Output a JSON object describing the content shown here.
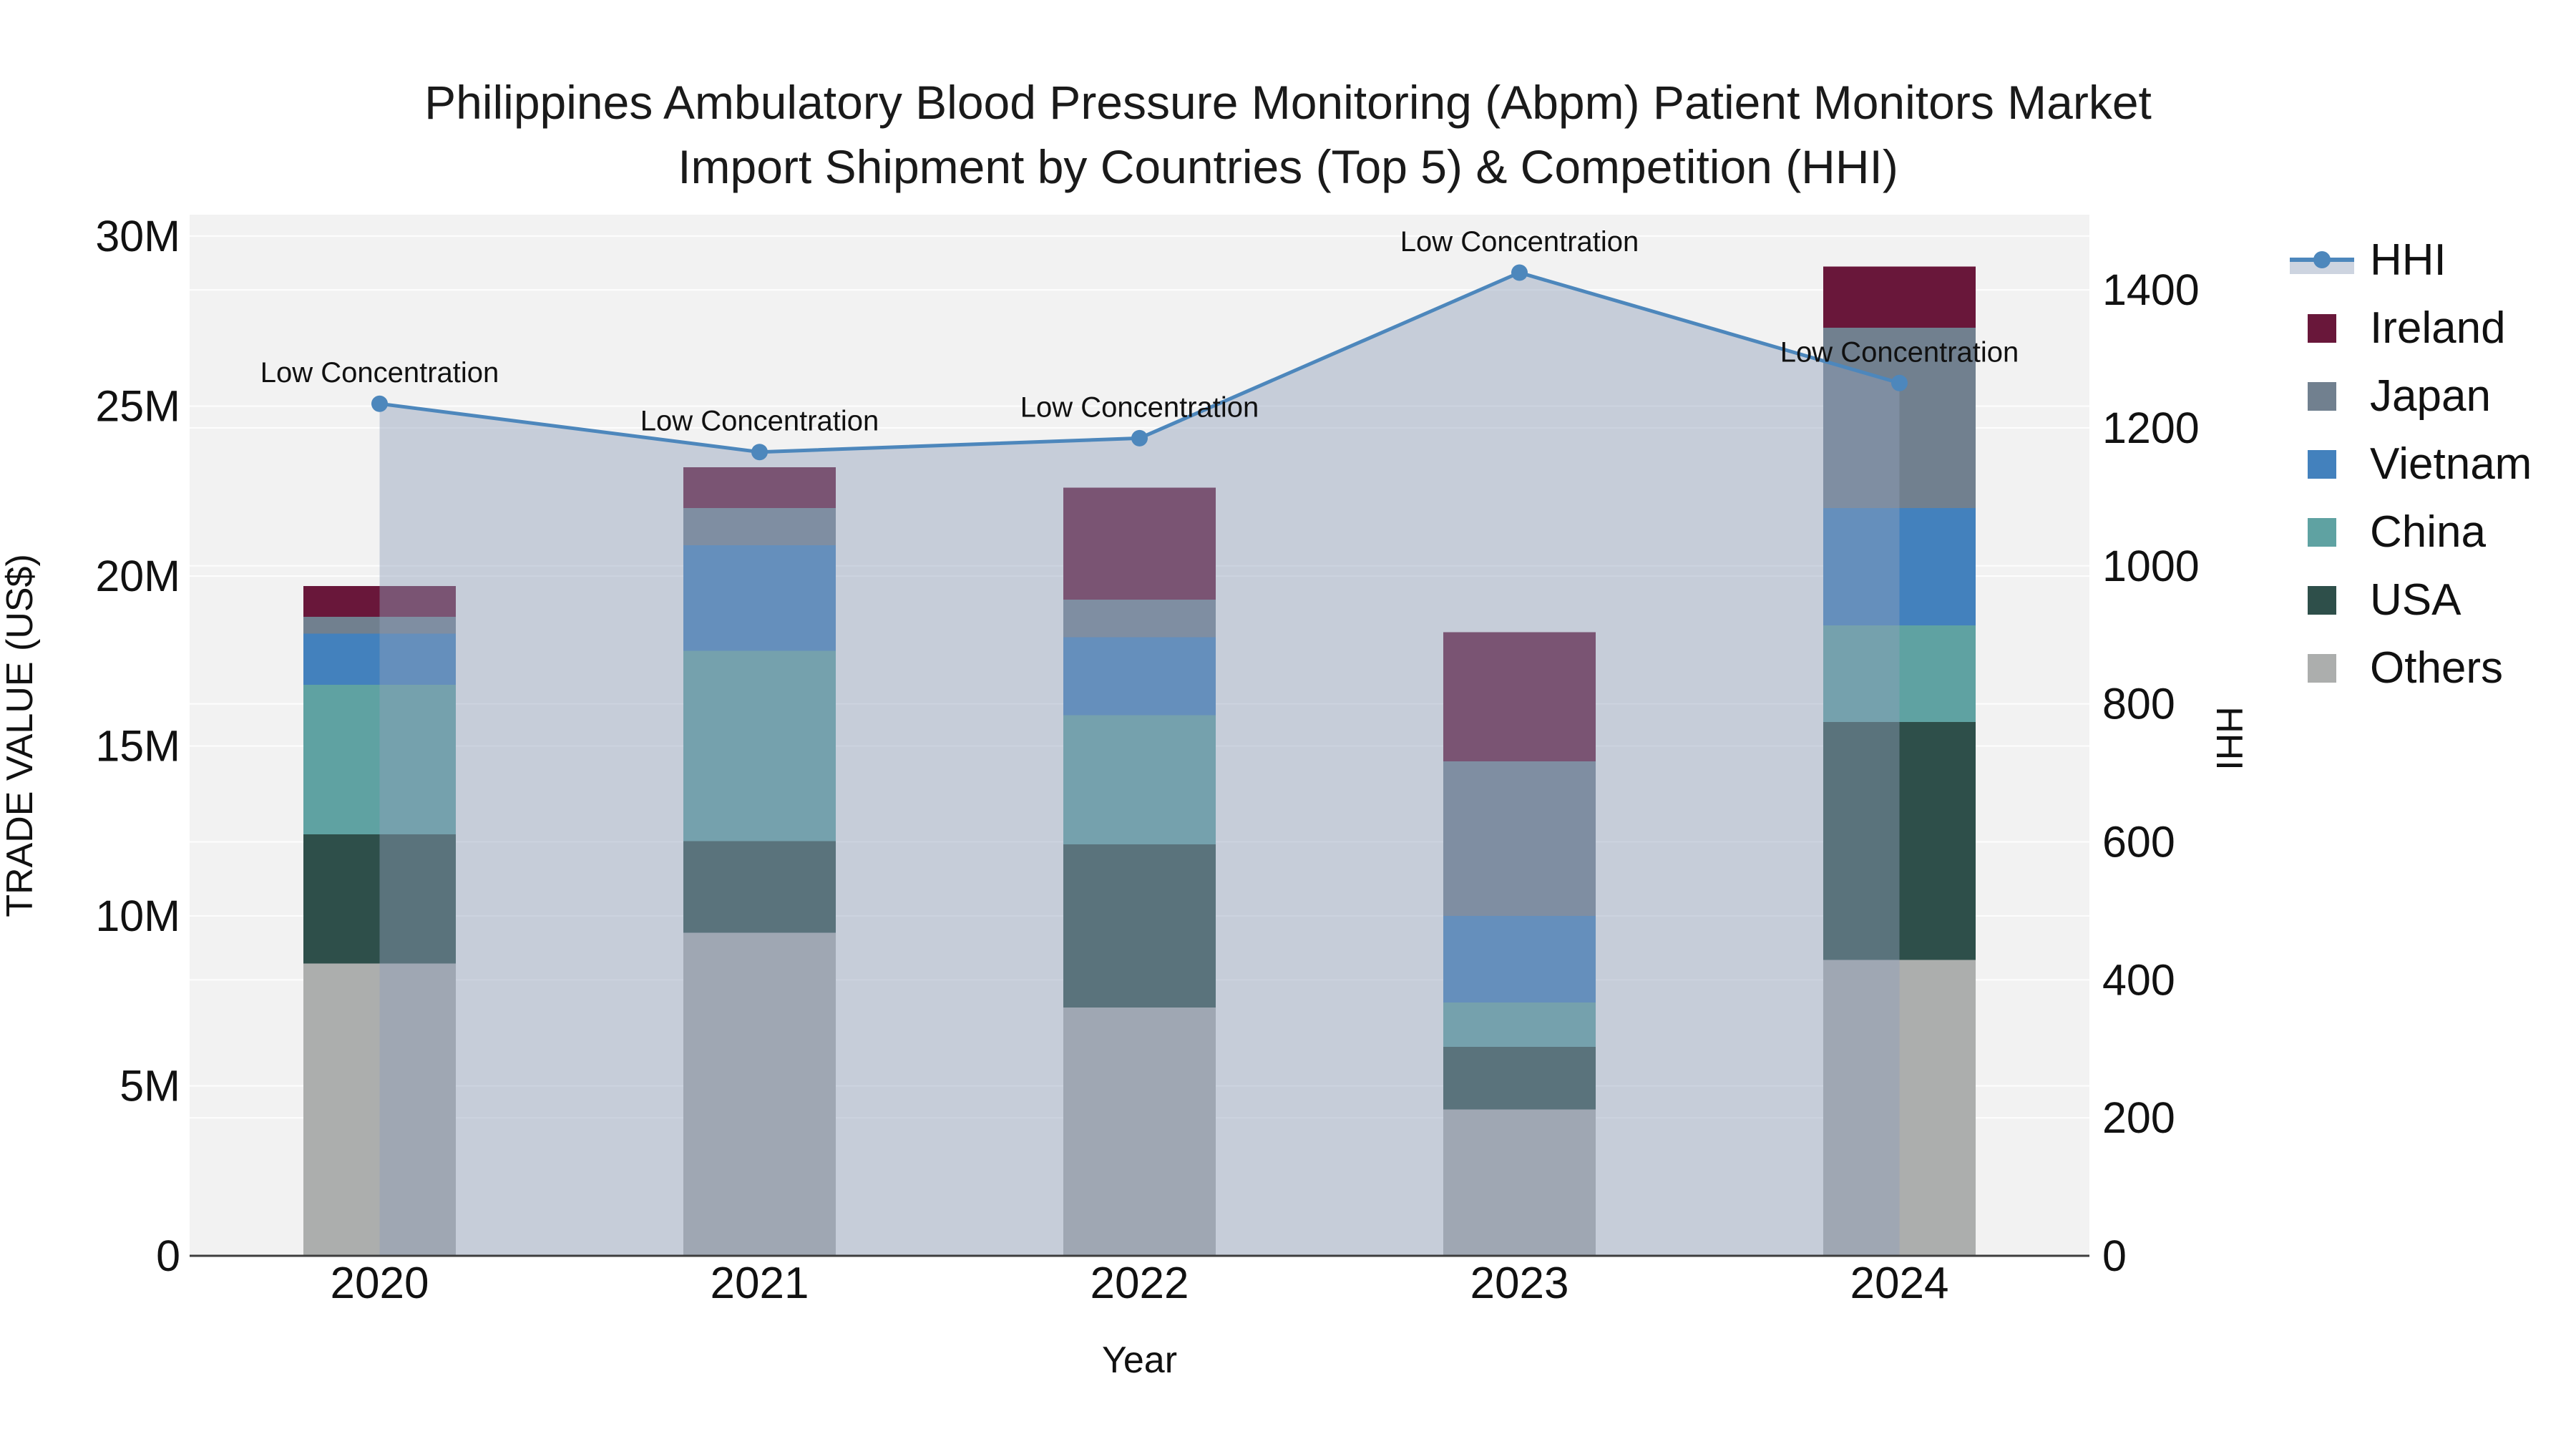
{
  "title": {
    "line1": "Philippines Ambulatory Blood Pressure Monitoring (Abpm) Patient Monitors Market",
    "line2": "Import Shipment by Countries (Top 5) & Competition (HHI)"
  },
  "chart_data": {
    "type": "combo: stacked bar (trade value) + line with area fill (HHI)",
    "categories": [
      "2020",
      "2021",
      "2022",
      "2023",
      "2024"
    ],
    "value_unit": "million US$",
    "bar_series": [
      {
        "name": "Others",
        "color": "#ACAEAD",
        "values": [
          8.6,
          9.5,
          7.3,
          4.3,
          8.7
        ]
      },
      {
        "name": "USA",
        "color": "#2E4F4A",
        "values": [
          3.8,
          2.7,
          4.8,
          1.85,
          7.0
        ]
      },
      {
        "name": "China",
        "color": "#5FA2A2",
        "values": [
          4.4,
          5.6,
          3.8,
          1.3,
          2.85
        ]
      },
      {
        "name": "Vietnam",
        "color": "#4381BD",
        "values": [
          1.5,
          3.1,
          2.3,
          2.55,
          3.45
        ]
      },
      {
        "name": "Japan",
        "color": "#71808F",
        "values": [
          0.5,
          1.1,
          1.1,
          4.55,
          5.3
        ]
      },
      {
        "name": "Ireland",
        "color": "#69173A",
        "values": [
          0.9,
          1.2,
          3.3,
          3.8,
          1.8
        ]
      }
    ],
    "bar_totals": [
      19.7,
      23.2,
      22.6,
      18.35,
      29.1
    ],
    "line_series": {
      "name": "HHI",
      "color": "#4D87BC",
      "fill_color": "rgba(144,160,187,0.45)",
      "values": [
        1235,
        1165,
        1185,
        1425,
        1265
      ],
      "point_annotations": [
        "Low Concentration",
        "Low Concentration",
        "Low Concentration",
        "Low Concentration",
        "Low Concentration"
      ]
    },
    "left_axis": {
      "title": "TRADE VALUE (US$)",
      "max": 30.63,
      "ticks": [
        {
          "v": 0,
          "label": "0"
        },
        {
          "v": 5,
          "label": "5M"
        },
        {
          "v": 10,
          "label": "10M"
        },
        {
          "v": 15,
          "label": "15M"
        },
        {
          "v": 20,
          "label": "20M"
        },
        {
          "v": 25,
          "label": "25M"
        },
        {
          "v": 30,
          "label": "30M"
        }
      ]
    },
    "right_axis": {
      "title": "HHI",
      "max": 1509,
      "ticks": [
        {
          "v": 0,
          "label": "0"
        },
        {
          "v": 200,
          "label": "200"
        },
        {
          "v": 400,
          "label": "400"
        },
        {
          "v": 600,
          "label": "600"
        },
        {
          "v": 800,
          "label": "800"
        },
        {
          "v": 1000,
          "label": "1000"
        },
        {
          "v": 1200,
          "label": "1200"
        },
        {
          "v": 1400,
          "label": "1400"
        }
      ]
    },
    "x_axis": {
      "title": "Year"
    },
    "legend_order": [
      "HHI",
      "Ireland",
      "Japan",
      "Vietnam",
      "China",
      "USA",
      "Others"
    ],
    "style": {
      "plot_bg": "#f2f2f2",
      "gridline_color": "#fdfdfd",
      "axis_line_color": "#3d3d3d",
      "text_color": "#111111"
    }
  }
}
